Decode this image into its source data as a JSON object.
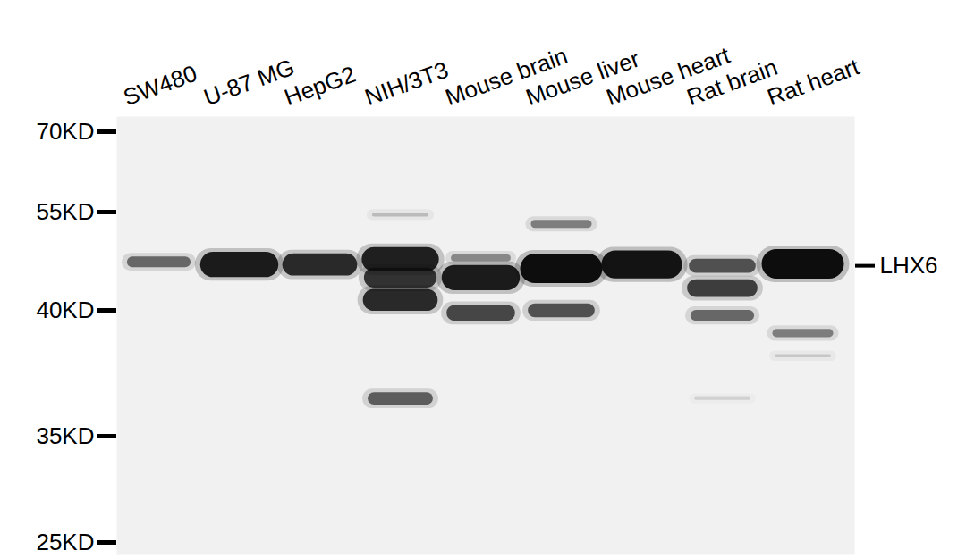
{
  "chart_data": {
    "type": "western_blot",
    "categories": [
      "SW480",
      "U-87 MG",
      "HepG2",
      "NIH/3T3",
      "Mouse brain",
      "Mouse liver",
      "Mouse heart",
      "Rat brain",
      "Rat heart"
    ],
    "ylim": [
      25,
      70
    ],
    "yticks": [
      {
        "value": 70,
        "label": "70KD"
      },
      {
        "value": 55,
        "label": "55KD"
      },
      {
        "value": 40,
        "label": "40KD"
      },
      {
        "value": 35,
        "label": "35KD"
      },
      {
        "value": 25,
        "label": "25KD"
      }
    ],
    "target": {
      "label": "LHX6",
      "value": 46.8
    },
    "bands": [
      {
        "lane": "SW480",
        "kda": 47.4,
        "intensity": 0.55
      },
      {
        "lane": "U-87 MG",
        "kda": 47.0,
        "intensity": 0.92
      },
      {
        "lane": "HepG2",
        "kda": 47.0,
        "intensity": 0.85
      },
      {
        "lane": "NIH/3T3",
        "kda": 54.6,
        "intensity": 0.2
      },
      {
        "lane": "NIH/3T3",
        "kda": 47.8,
        "intensity": 0.9
      },
      {
        "lane": "NIH/3T3",
        "kda": 45.0,
        "intensity": 0.8
      },
      {
        "lane": "NIH/3T3",
        "kda": 41.6,
        "intensity": 0.85
      },
      {
        "lane": "NIH/3T3",
        "kda": 36.5,
        "intensity": 0.6
      },
      {
        "lane": "Mouse brain",
        "kda": 48.0,
        "intensity": 0.4
      },
      {
        "lane": "Mouse brain",
        "kda": 45.0,
        "intensity": 0.92
      },
      {
        "lane": "Mouse brain",
        "kda": 39.9,
        "intensity": 0.7
      },
      {
        "lane": "Mouse liver",
        "kda": 53.2,
        "intensity": 0.45
      },
      {
        "lane": "Mouse liver",
        "kda": 46.4,
        "intensity": 1.0
      },
      {
        "lane": "Mouse liver",
        "kda": 40.0,
        "intensity": 0.65
      },
      {
        "lane": "Mouse heart",
        "kda": 47.0,
        "intensity": 0.97
      },
      {
        "lane": "Rat brain",
        "kda": 46.8,
        "intensity": 0.65
      },
      {
        "lane": "Rat brain",
        "kda": 43.4,
        "intensity": 0.75
      },
      {
        "lane": "Rat brain",
        "kda": 39.8,
        "intensity": 0.55
      },
      {
        "lane": "Rat brain",
        "kda": 36.5,
        "intensity": 0.1
      },
      {
        "lane": "Rat heart",
        "kda": 47.1,
        "intensity": 1.0
      },
      {
        "lane": "Rat heart",
        "kda": 39.1,
        "intensity": 0.45
      },
      {
        "lane": "Rat heart",
        "kda": 38.2,
        "intensity": 0.15
      }
    ],
    "grid": false
  }
}
